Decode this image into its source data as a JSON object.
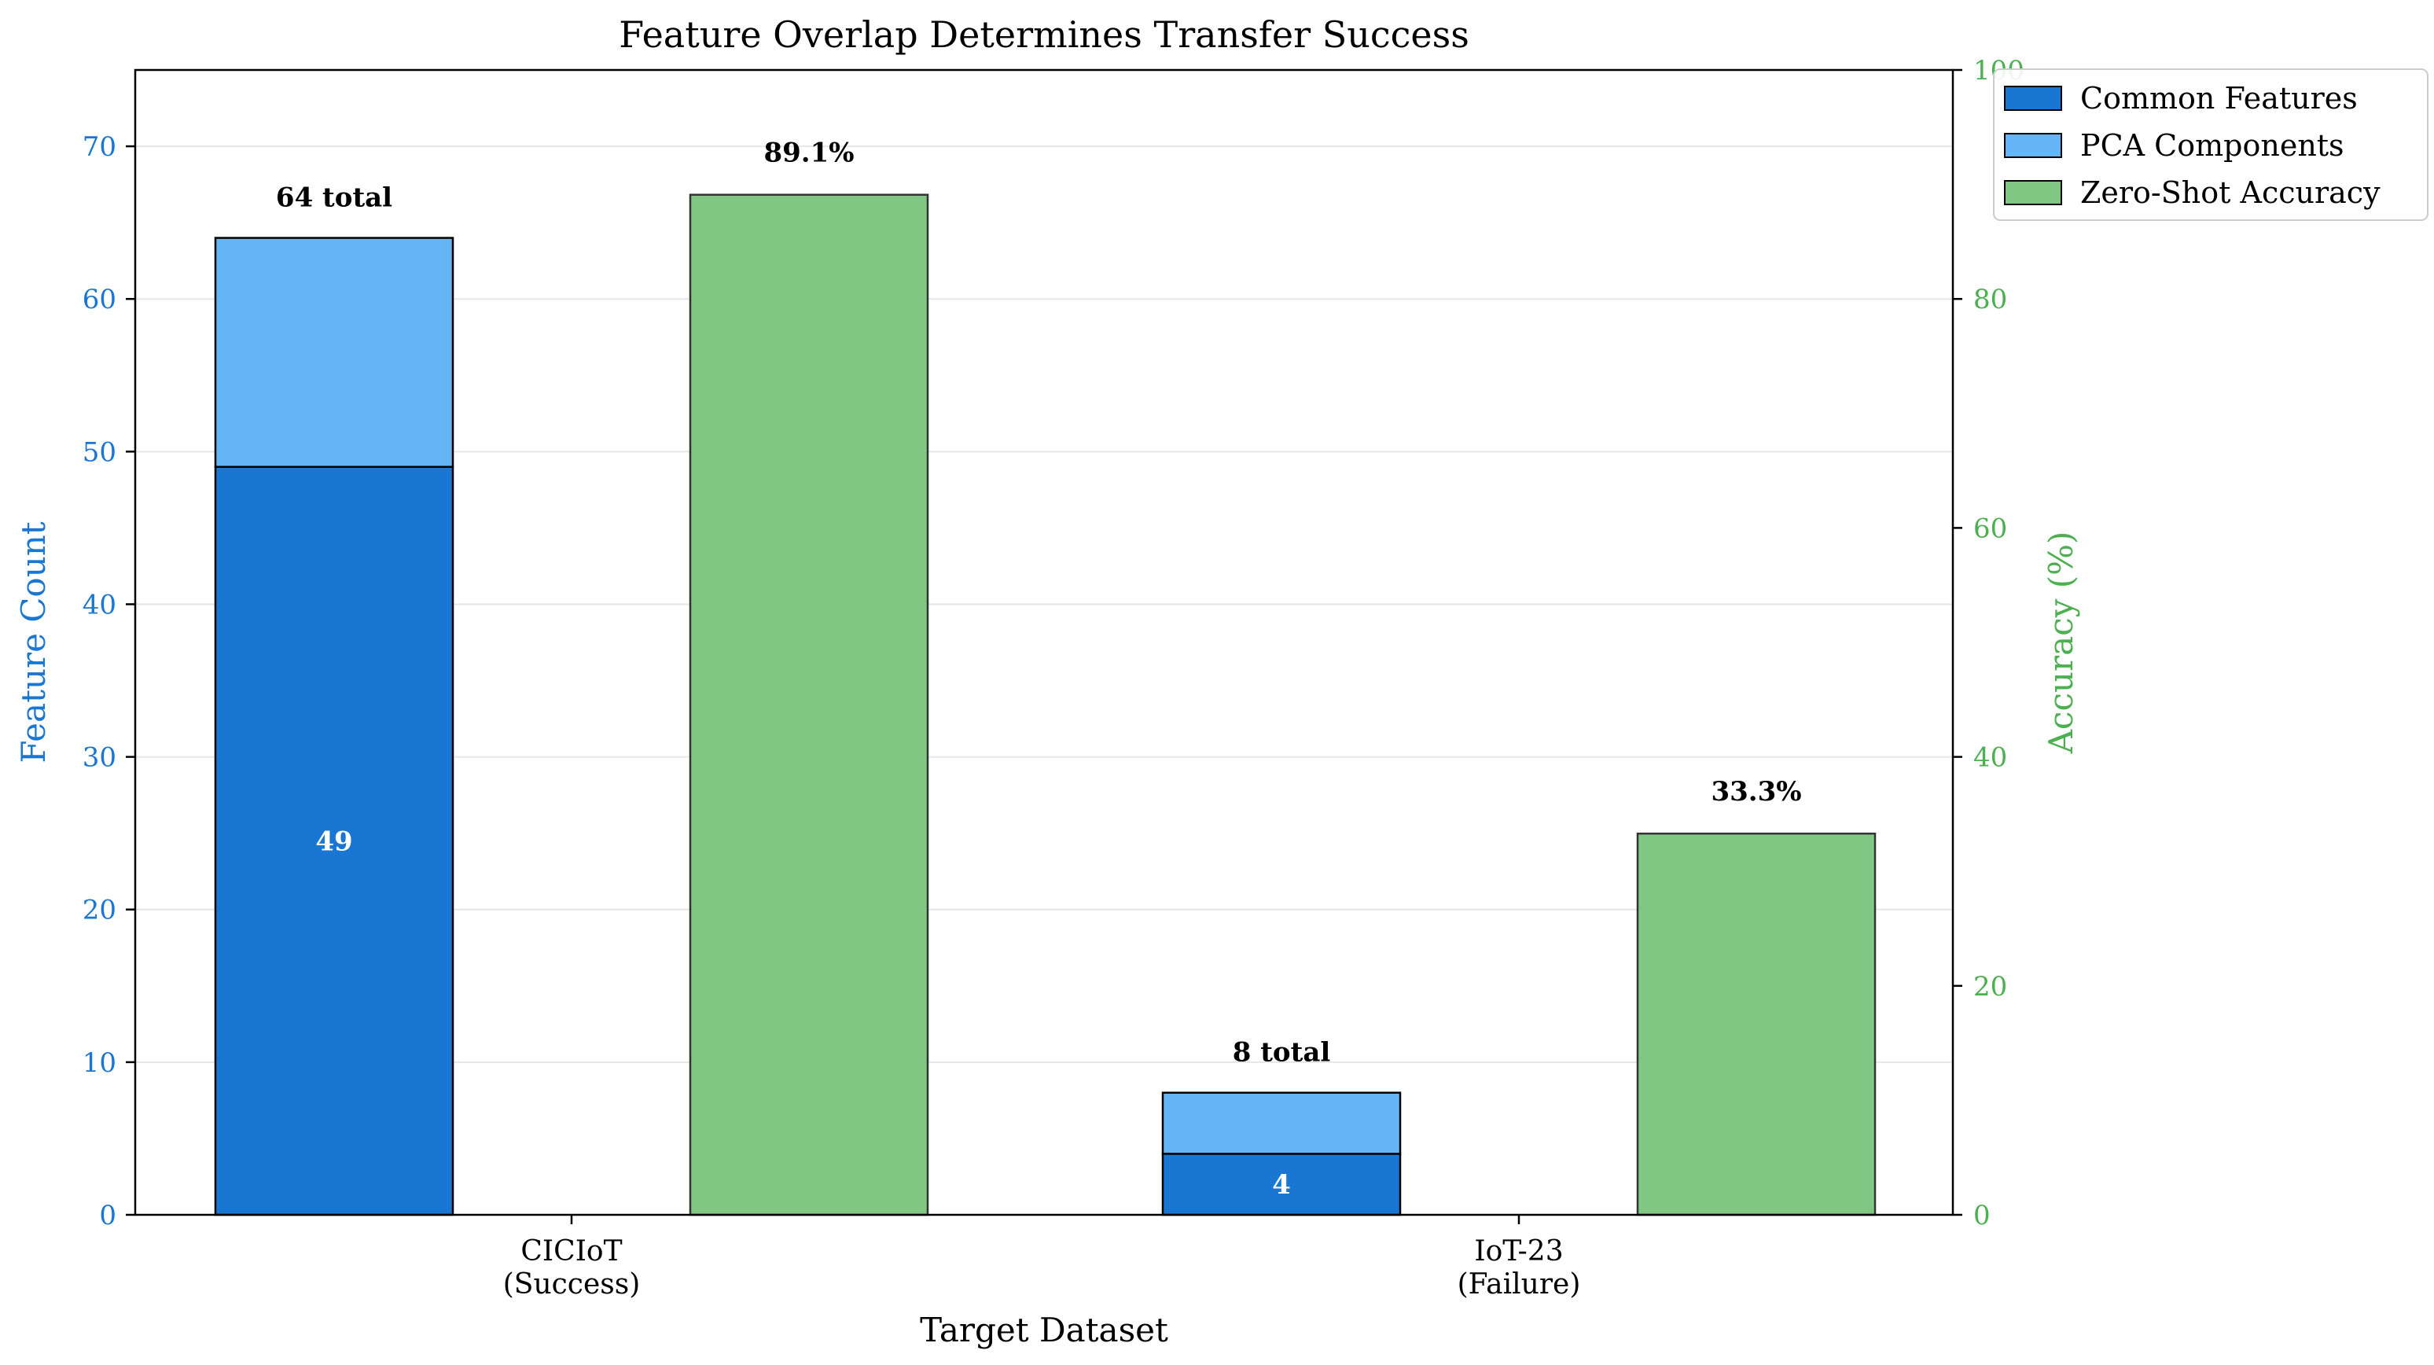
{
  "chart_data": {
    "type": "bar",
    "title": "Feature Overlap Determines Transfer Success",
    "xlabel": "Target Dataset",
    "ylabel_left": "Feature Count",
    "ylabel_right": "Accuracy (%)",
    "categories": [
      [
        "CICIoT",
        "(Success)"
      ],
      [
        "IoT-23",
        "(Failure)"
      ]
    ],
    "ylim_left": [
      0,
      75
    ],
    "ylim_right": [
      0,
      100
    ],
    "yticks_left": [
      0,
      10,
      20,
      30,
      40,
      50,
      60,
      70
    ],
    "yticks_right": [
      0,
      20,
      40,
      60,
      80,
      100
    ],
    "grid": true,
    "legend_placement": "top-right",
    "series": [
      {
        "name": "Common Features",
        "axis": "left",
        "stack": "features",
        "values": [
          49,
          4
        ],
        "labels": [
          "49",
          "4"
        ]
      },
      {
        "name": "PCA Components",
        "axis": "left",
        "stack": "features",
        "values": [
          15,
          4
        ]
      },
      {
        "name": "Zero-Shot Accuracy",
        "axis": "right",
        "values": [
          89.1,
          33.3
        ],
        "labels": [
          "89.1%",
          "33.3%"
        ]
      }
    ],
    "stack_totals": [
      64,
      8
    ],
    "stack_total_labels": [
      "64 total",
      "8 total"
    ],
    "colors": {
      "common": "#1976d2",
      "pca": "#64b5f6",
      "accuracy": "#81c784",
      "left_axis": "#1976d2",
      "right_axis": "#4caf50"
    }
  }
}
